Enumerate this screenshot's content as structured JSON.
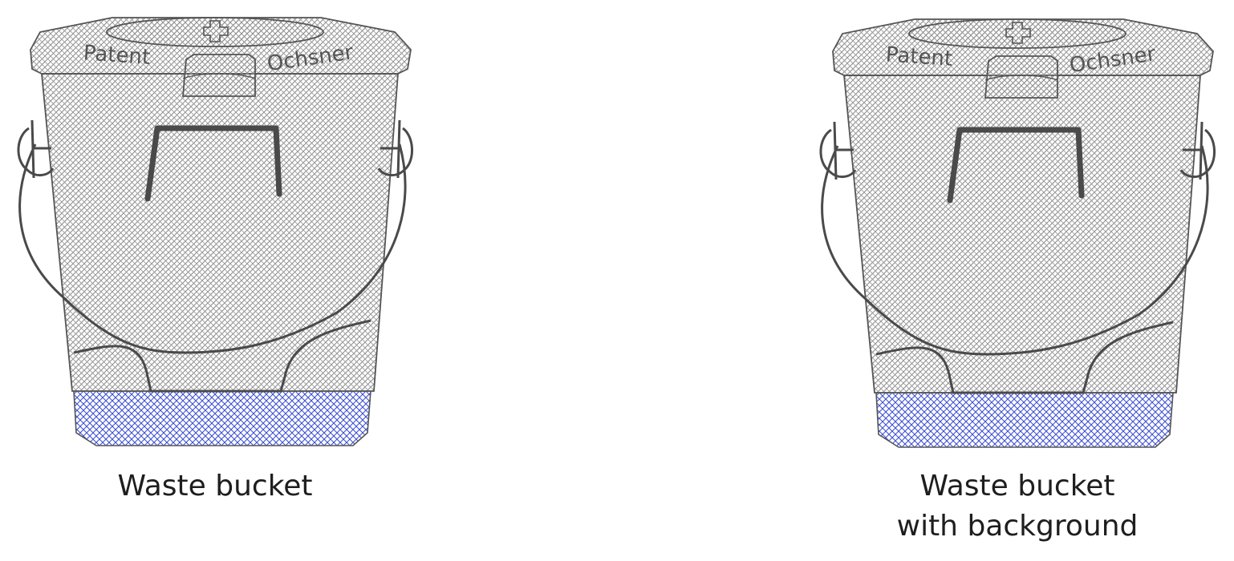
{
  "buckets": [
    {
      "brand_left": "Patent",
      "brand_right": "Ochsner",
      "caption_lines": [
        "Waste bucket"
      ]
    },
    {
      "brand_left": "Patent",
      "brand_right": "Ochsner",
      "caption_lines": [
        "Waste bucket",
        "with background"
      ]
    }
  ],
  "colors": {
    "stroke": "#555555",
    "hatch": "#8a8a8a",
    "base_hatch": "#3f51d4",
    "text": "#1e1e1e"
  }
}
